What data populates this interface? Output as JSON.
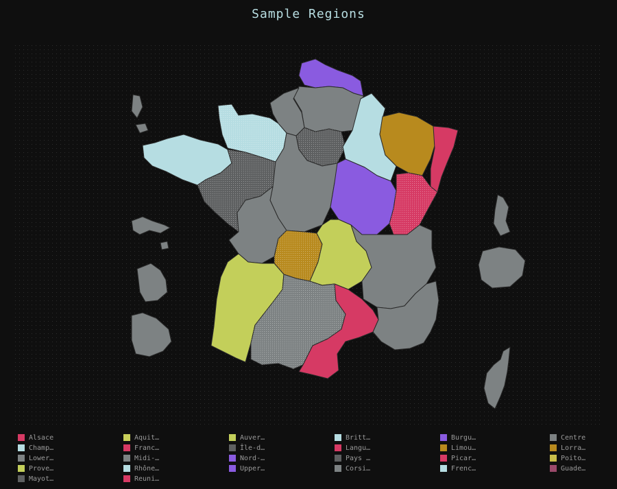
{
  "title": "Sample Regions",
  "colors": {
    "background": "#0f0f0f",
    "title": "#b9dfe3",
    "legend_text": "#9a9a9a"
  },
  "legend": [
    {
      "label": "Alsace",
      "color": "#d63a64"
    },
    {
      "label": "Aquit…",
      "color": "#c9cf5a"
    },
    {
      "label": "Auver…",
      "color": "#c3cf5a"
    },
    {
      "label": "Britt…",
      "color": "#b6dde2"
    },
    {
      "label": "Burgu…",
      "color": "#8a5be0"
    },
    {
      "label": "Centre",
      "color": "#7d8283"
    },
    {
      "label": "Champ…",
      "color": "#b6dde2"
    },
    {
      "label": "Franc…",
      "color": "#d63a64"
    },
    {
      "label": "Île-d…",
      "color": "#5e6061"
    },
    {
      "label": "Langu…",
      "color": "#d63a64"
    },
    {
      "label": "Limou…",
      "color": "#b88a1e"
    },
    {
      "label": "Lorra…",
      "color": "#b88a1e"
    },
    {
      "label": "Lower…",
      "color": "#7d8283"
    },
    {
      "label": "Midi-…",
      "color": "#7d8283"
    },
    {
      "label": "Nord-…",
      "color": "#8a5be0"
    },
    {
      "label": "Pays …",
      "color": "#5e6061"
    },
    {
      "label": "Picar…",
      "color": "#d63a64"
    },
    {
      "label": "Poito…",
      "color": "#c9bd4a"
    },
    {
      "label": "Prove…",
      "color": "#c3cf5a"
    },
    {
      "label": "Rhône…",
      "color": "#b6dde2"
    },
    {
      "label": "Upper…",
      "color": "#8a5be0"
    },
    {
      "label": "Corsi…",
      "color": "#7d8283"
    },
    {
      "label": "Frenc…",
      "color": "#b6dde2"
    },
    {
      "label": "Guade…",
      "color": "#9a4a6a"
    },
    {
      "label": "Mayot…",
      "color": "#5e6061"
    },
    {
      "label": "Reuni…",
      "color": "#d63a64"
    }
  ]
}
